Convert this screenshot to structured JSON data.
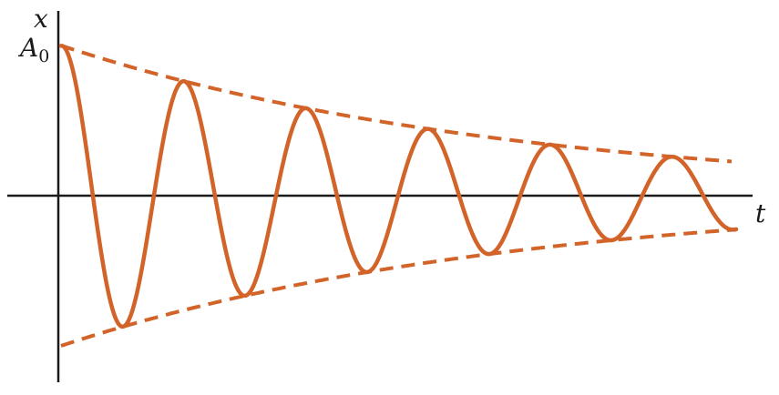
{
  "diagram": {
    "y_axis_label": "x",
    "x_axis_label": "t",
    "amplitude_label": "A",
    "amplitude_subscript": "0",
    "colors": {
      "curve": "#d2642a",
      "axes": "#1a1a1a"
    },
    "curve": {
      "type": "damped oscillation",
      "line_style": "solid"
    },
    "envelope": {
      "line_style": "dashed",
      "count": 2
    }
  }
}
